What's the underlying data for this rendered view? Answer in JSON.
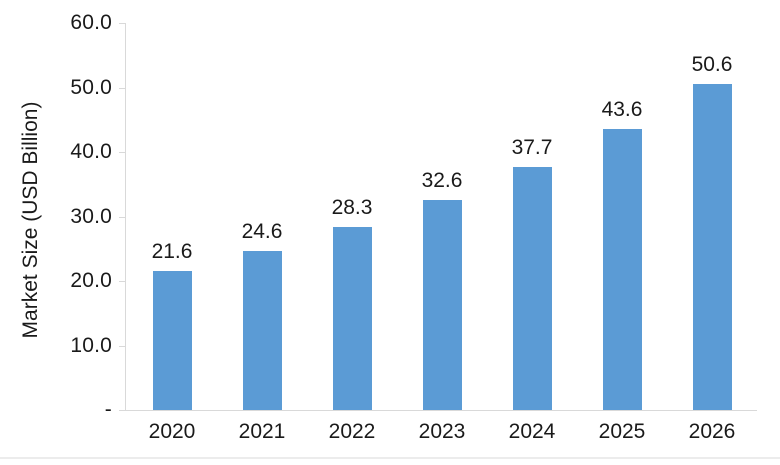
{
  "chart_data": {
    "type": "bar",
    "title": "",
    "xlabel": "",
    "ylabel": "Market Size (USD Billion)",
    "categories": [
      "2020",
      "2021",
      "2022",
      "2023",
      "2024",
      "2025",
      "2026"
    ],
    "values": [
      21.6,
      24.6,
      28.3,
      32.6,
      37.7,
      43.6,
      50.6
    ],
    "value_labels": [
      "21.6",
      "24.6",
      "28.3",
      "32.6",
      "37.7",
      "43.6",
      "50.6"
    ],
    "ylim": [
      0,
      60
    ],
    "ytick_values": [
      60,
      50,
      40,
      30,
      20,
      10,
      0
    ],
    "ytick_labels": [
      "60.0",
      "50.0",
      "40.0",
      "30.0",
      "20.0",
      "10.0",
      "-"
    ],
    "grid": false,
    "legend_position": "none",
    "bar_color": "#5b9bd5",
    "axis_color": "#d9d9d9",
    "text_color": "#1a1a1a"
  }
}
